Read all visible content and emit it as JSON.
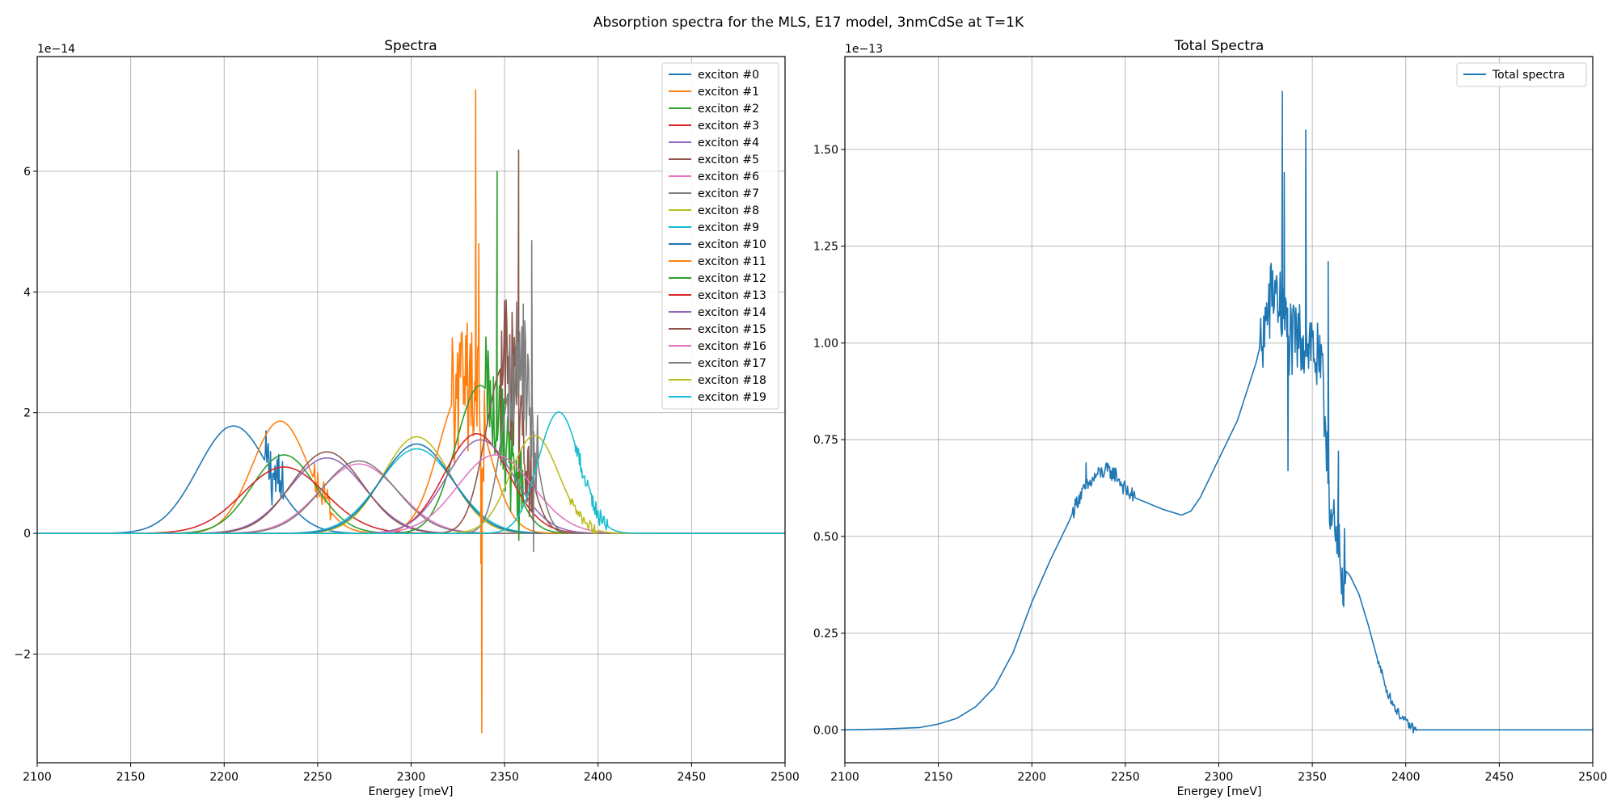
{
  "figure": {
    "title": "Absorption spectra for the MLS, E17 model, 3nmCdSe at T=1K"
  },
  "colors": {
    "palette": [
      "#1f77b4",
      "#ff7f0e",
      "#2ca02c",
      "#d62728",
      "#9467bd",
      "#8c564b",
      "#e377c2",
      "#7f7f7f",
      "#bcbd22",
      "#17becf"
    ],
    "grid": "#b0b0b0",
    "axes": "#000000",
    "background": "#ffffff"
  },
  "chart_data": [
    {
      "type": "line",
      "title": "Spectra",
      "xlabel": "Energey [meV]",
      "ylabel": "",
      "offset_label": "1e−14",
      "xlim": [
        2100,
        2500
      ],
      "ylim": [
        -3.8,
        7.9
      ],
      "xticks": [
        2100,
        2150,
        2200,
        2250,
        2300,
        2350,
        2400,
        2450,
        2500
      ],
      "yticks": [
        -2,
        0,
        2,
        4,
        6
      ],
      "ytick_labels": [
        "−2",
        "0",
        "2",
        "4",
        "6"
      ],
      "grid": true,
      "legend_position": "top-right",
      "series": [
        {
          "name": "exciton #0",
          "gauss": {
            "center": 2205,
            "amp": 1.78,
            "sigma": 19
          },
          "noise": {
            "from": 2222,
            "to": 2232,
            "amp": 0.55
          }
        },
        {
          "name": "exciton #1",
          "gauss": {
            "center": 2230,
            "amp": 1.86,
            "sigma": 15
          },
          "noise": {
            "from": 2248,
            "to": 2258,
            "amp": 0.3
          }
        },
        {
          "name": "exciton #2",
          "gauss": {
            "center": 2232,
            "amp": 1.3,
            "sigma": 17
          }
        },
        {
          "name": "exciton #3",
          "gauss": {
            "center": 2232,
            "amp": 1.1,
            "sigma": 22
          }
        },
        {
          "name": "exciton #4",
          "gauss": {
            "center": 2255,
            "amp": 1.25,
            "sigma": 20
          }
        },
        {
          "name": "exciton #5",
          "gauss": {
            "center": 2255,
            "amp": 1.35,
            "sigma": 19
          }
        },
        {
          "name": "exciton #6",
          "gauss": {
            "center": 2272,
            "amp": 1.15,
            "sigma": 21
          }
        },
        {
          "name": "exciton #7",
          "gauss": {
            "center": 2272,
            "amp": 1.2,
            "sigma": 20
          }
        },
        {
          "name": "exciton #8",
          "gauss": {
            "center": 2303,
            "amp": 1.6,
            "sigma": 18
          }
        },
        {
          "name": "exciton #9",
          "gauss": {
            "center": 2303,
            "amp": 1.4,
            "sigma": 20
          }
        },
        {
          "name": "exciton #10",
          "gauss": {
            "center": 2303,
            "amp": 1.48,
            "sigma": 19
          }
        },
        {
          "name": "exciton #11",
          "gauss": {
            "center": 2328,
            "amp": 2.4,
            "sigma": 13
          },
          "peaks": [
            [
              2334.5,
              7.35
            ],
            [
              2336.2,
              4.8
            ],
            [
              2337.3,
              -0.5
            ],
            [
              2337.8,
              -3.3
            ]
          ],
          "noise": {
            "from": 2322,
            "to": 2340,
            "amp": 1.2
          }
        },
        {
          "name": "exciton #12",
          "gauss": {
            "center": 2337,
            "amp": 2.45,
            "sigma": 13
          },
          "peaks": [
            [
              2346.0,
              6.0
            ]
          ],
          "noise": {
            "from": 2340,
            "to": 2360,
            "amp": 0.9
          }
        },
        {
          "name": "exciton #13",
          "gauss": {
            "center": 2335,
            "amp": 1.65,
            "sigma": 17
          }
        },
        {
          "name": "exciton #14",
          "gauss": {
            "center": 2337,
            "amp": 1.55,
            "sigma": 18
          }
        },
        {
          "name": "exciton #15",
          "gauss": {
            "center": 2350,
            "amp": 2.8,
            "sigma": 10
          },
          "peaks": [
            [
              2357.5,
              6.35
            ]
          ],
          "noise": {
            "from": 2348,
            "to": 2366,
            "amp": 1.2
          }
        },
        {
          "name": "exciton #16",
          "gauss": {
            "center": 2345,
            "amp": 1.3,
            "sigma": 20
          }
        },
        {
          "name": "exciton #17",
          "gauss": {
            "center": 2357,
            "amp": 2.9,
            "sigma": 8
          },
          "peaks": [
            [
              2360.0,
              3.8
            ],
            [
              2364.5,
              4.85
            ],
            [
              2365.5,
              -0.3
            ]
          ],
          "noise": {
            "from": 2352,
            "to": 2368,
            "amp": 1.0
          }
        },
        {
          "name": "exciton #18",
          "gauss": {
            "center": 2366,
            "amp": 1.62,
            "sigma": 13
          },
          "noise": {
            "from": 2385,
            "to": 2400,
            "amp": 0.1
          }
        },
        {
          "name": "exciton #19",
          "gauss": {
            "center": 2379,
            "amp": 2.01,
            "sigma": 11
          },
          "noise": {
            "from": 2388,
            "to": 2405,
            "amp": 0.15
          }
        }
      ]
    },
    {
      "type": "line",
      "title": "Total Spectra",
      "xlabel": "Energey [meV]",
      "ylabel": "",
      "offset_label": "1e−13",
      "xlim": [
        2100,
        2500
      ],
      "ylim": [
        -0.085,
        1.74
      ],
      "xticks": [
        2100,
        2150,
        2200,
        2250,
        2300,
        2350,
        2400,
        2450,
        2500
      ],
      "yticks": [
        0.0,
        0.25,
        0.5,
        0.75,
        1.0,
        1.25,
        1.5
      ],
      "ytick_labels": [
        "0.00",
        "0.25",
        "0.50",
        "0.75",
        "1.00",
        "1.25",
        "1.50"
      ],
      "grid": true,
      "legend_position": "top-right",
      "series": [
        {
          "name": "Total spectra",
          "x": [
            2100,
            2120,
            2140,
            2150,
            2160,
            2170,
            2180,
            2190,
            2200,
            2210,
            2220,
            2225,
            2230,
            2235,
            2240,
            2245,
            2250,
            2255,
            2260,
            2270,
            2280,
            2285,
            2290,
            2300,
            2310,
            2320,
            2325,
            2330,
            2335,
            2340,
            2345,
            2350,
            2355,
            2358,
            2360,
            2363,
            2366,
            2370,
            2375,
            2380,
            2385,
            2390,
            2395,
            2400,
            2405,
            2410,
            2450,
            2500
          ],
          "y": [
            0.0,
            0.002,
            0.006,
            0.015,
            0.03,
            0.06,
            0.11,
            0.2,
            0.33,
            0.44,
            0.54,
            0.6,
            0.63,
            0.66,
            0.67,
            0.66,
            0.62,
            0.6,
            0.59,
            0.57,
            0.555,
            0.565,
            0.6,
            0.7,
            0.8,
            0.95,
            1.05,
            1.15,
            1.05,
            0.99,
            1.02,
            1.0,
            0.9,
            0.75,
            0.55,
            0.45,
            0.42,
            0.4,
            0.35,
            0.27,
            0.18,
            0.1,
            0.05,
            0.02,
            0.0,
            0.0,
            0.0,
            0.0
          ],
          "peaks": [
            [
              2229,
              0.69
            ],
            [
              2334,
              1.65
            ],
            [
              2335,
              1.44
            ],
            [
              2337,
              0.67
            ],
            [
              2346.5,
              1.55
            ],
            [
              2358.5,
              1.21
            ],
            [
              2364,
              0.72
            ]
          ],
          "noise": [
            {
              "from": 2222,
              "to": 2255,
              "amp": 0.035
            },
            {
              "from": 2322,
              "to": 2368,
              "amp": 0.18
            },
            {
              "from": 2385,
              "to": 2406,
              "amp": 0.02
            }
          ]
        }
      ]
    }
  ]
}
